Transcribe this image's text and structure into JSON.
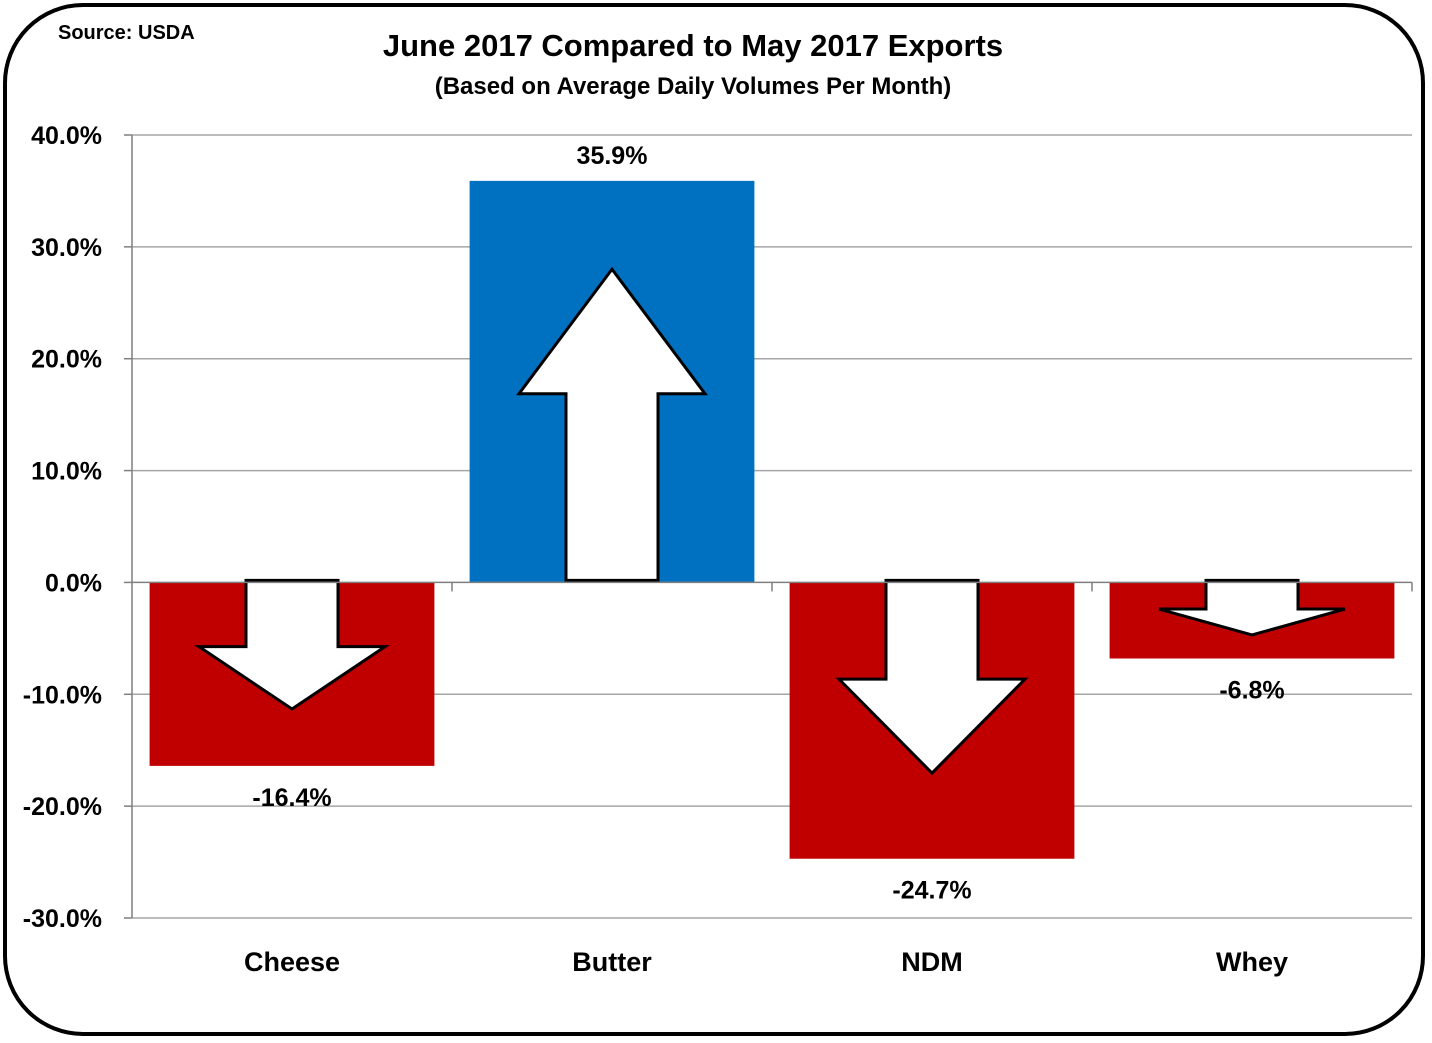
{
  "source": "Source: USDA",
  "chart_data": {
    "type": "bar",
    "title": "June 2017 Compared to May 2017 Exports",
    "subtitle": "(Based on Average Daily Volumes Per Month)",
    "categories": [
      "Cheese",
      "Butter",
      "NDM",
      "Whey"
    ],
    "values": [
      -16.4,
      35.9,
      -24.7,
      -6.8
    ],
    "value_labels": [
      "-16.4%",
      "35.9%",
      "-24.7%",
      "-6.8%"
    ],
    "ylim": [
      -30,
      40
    ],
    "yticks": [
      40,
      30,
      20,
      10,
      0,
      -10,
      -20,
      -30
    ],
    "ytick_labels": [
      "40.0%",
      "30.0%",
      "20.0%",
      "10.0%",
      "0.0%",
      "-10.0%",
      "-20.0%",
      "-30.0%"
    ],
    "xlabel": "",
    "ylabel": "",
    "grid": true,
    "colors": {
      "positive": "#0070C0",
      "negative": "#C00000",
      "arrow_fill": "#ffffff",
      "arrow_stroke": "#000000",
      "grid": "#a6a6a6"
    }
  }
}
